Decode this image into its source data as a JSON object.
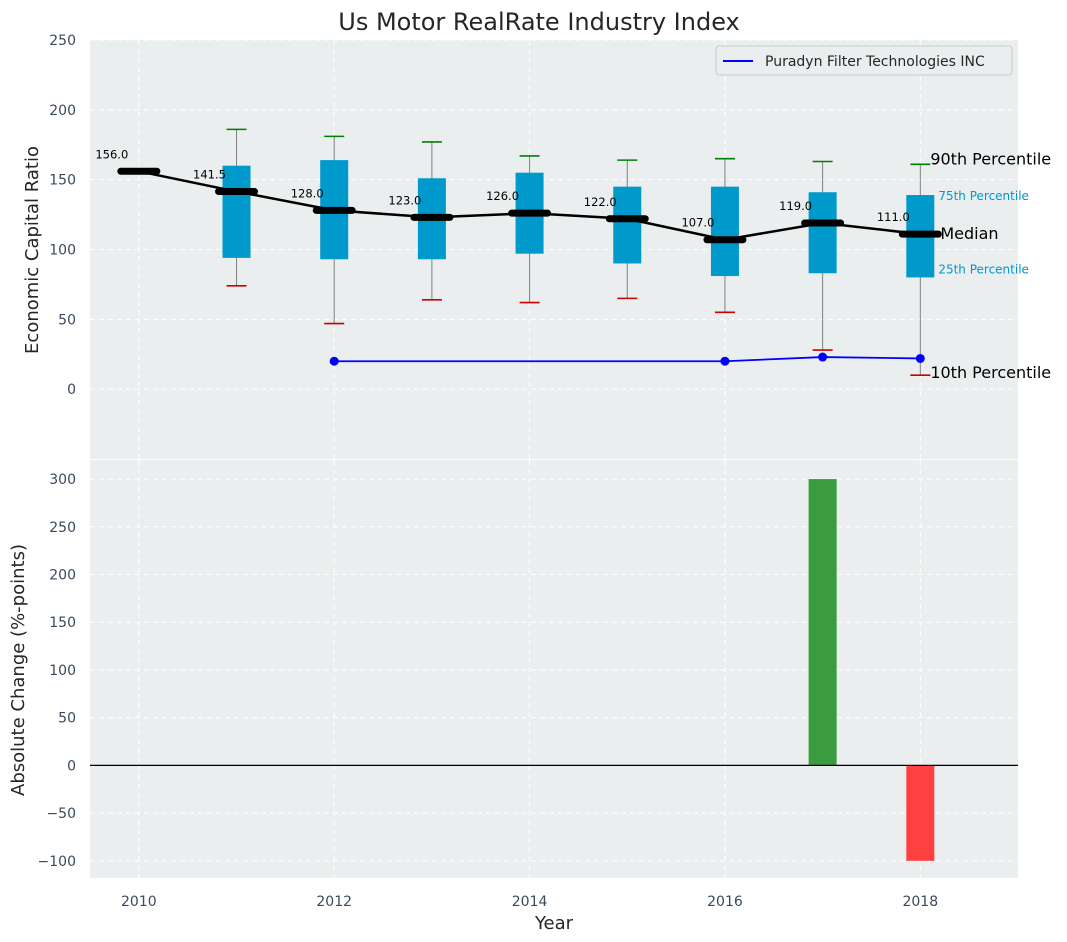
{
  "chart_data": [
    {
      "type": "box",
      "title": "Us Motor RealRate Industry Index",
      "xlabel": "",
      "ylabel": "Economic Capital Ratio",
      "ylim": [
        -50,
        250
      ],
      "xlim": [
        2009.5,
        2019
      ],
      "yticks": [
        0,
        50,
        100,
        150,
        200,
        250
      ],
      "grid": true,
      "legend_position": "top-right",
      "legend": [
        "Puradyn Filter Technologies INC"
      ],
      "years": [
        2010,
        2011,
        2012,
        2013,
        2014,
        2015,
        2016,
        2017,
        2018
      ],
      "median": [
        156.0,
        141.5,
        128.0,
        123.0,
        126.0,
        122.0,
        107.0,
        119.0,
        111.0
      ],
      "median_labels": [
        "156.0",
        "141.5",
        "128.0",
        "123.0",
        "126.0",
        "122.0",
        "107.0",
        "119.0",
        "111.0"
      ],
      "boxes": [
        {
          "year": 2011,
          "p10": 74,
          "p25": 94,
          "p75": 160,
          "p90": 186
        },
        {
          "year": 2012,
          "p10": 47,
          "p25": 93,
          "p75": 164,
          "p90": 181
        },
        {
          "year": 2013,
          "p10": 64,
          "p25": 93,
          "p75": 151,
          "p90": 177
        },
        {
          "year": 2014,
          "p10": 62,
          "p25": 97,
          "p75": 155,
          "p90": 167
        },
        {
          "year": 2015,
          "p10": 65,
          "p25": 90,
          "p75": 145,
          "p90": 164
        },
        {
          "year": 2016,
          "p10": 55,
          "p25": 81,
          "p75": 145,
          "p90": 165
        },
        {
          "year": 2017,
          "p10": 28,
          "p25": 83,
          "p75": 141,
          "p90": 163
        },
        {
          "year": 2018,
          "p10": 10,
          "p25": 80,
          "p75": 139,
          "p90": 161
        }
      ],
      "company": {
        "name": "Puradyn Filter Technologies INC",
        "color": "#0000ff",
        "x": [
          2012,
          2016,
          2017,
          2018
        ],
        "y": [
          20,
          20,
          23,
          22
        ]
      },
      "percentile_labels": {
        "p90": "90th Percentile",
        "p75": "75th Percentile",
        "median": "Median",
        "p25": "25th Percentile",
        "p10": "10th Percentile"
      },
      "colors": {
        "box": "#0099cc",
        "median": "#000000",
        "whisker_top": "#008000",
        "whisker_bottom": "#cc0000",
        "background": "#eaeeef"
      }
    },
    {
      "type": "bar",
      "xlabel": "Year",
      "ylabel": "Absolute Change (%-points)",
      "ylim": [
        -118,
        320
      ],
      "xlim": [
        2009.5,
        2019
      ],
      "yticks": [
        -100,
        -50,
        0,
        50,
        100,
        150,
        200,
        250,
        300
      ],
      "xticks": [
        2010,
        2012,
        2014,
        2016,
        2018
      ],
      "grid": true,
      "x": [
        2017,
        2018
      ],
      "values": [
        300,
        -100
      ],
      "colors": {
        "positive": "#3a9b3f",
        "negative": "#ff4040"
      }
    }
  ]
}
